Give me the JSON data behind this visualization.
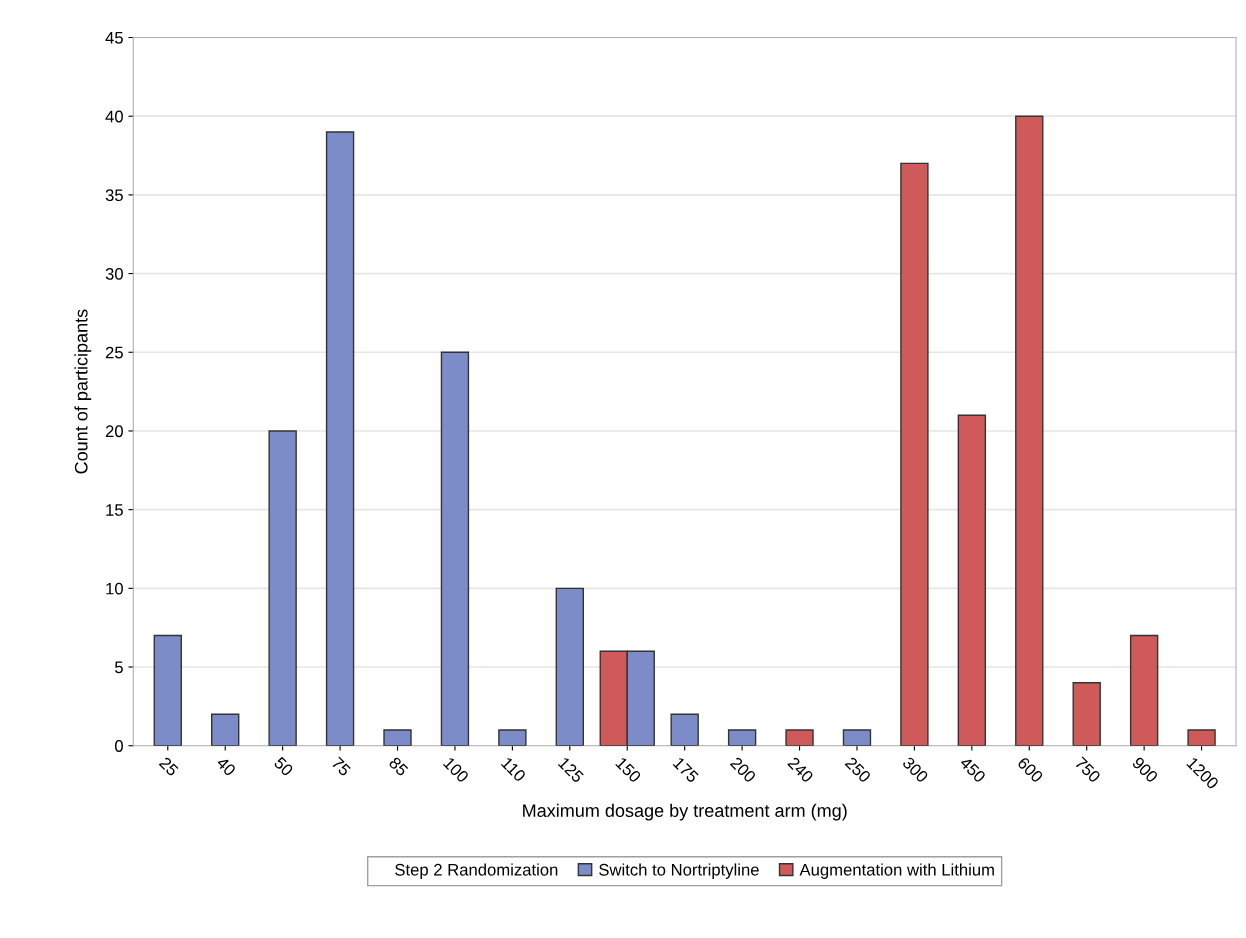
{
  "chart_data": {
    "type": "bar",
    "xlabel": "Maximum dosage by treatment arm (mg)",
    "ylabel": "Count of participants",
    "legend_title": "Step 2 Randomization",
    "categories": [
      "25",
      "40",
      "50",
      "75",
      "85",
      "100",
      "110",
      "125",
      "150",
      "175",
      "200",
      "240",
      "250",
      "300",
      "450",
      "600",
      "750",
      "900",
      "1200"
    ],
    "series": [
      {
        "name": "Switch to Nortriptyline",
        "color": "#7b8cc8",
        "values": [
          7,
          2,
          20,
          39,
          1,
          25,
          1,
          10,
          6,
          2,
          1,
          null,
          1,
          null,
          null,
          null,
          null,
          null,
          null
        ]
      },
      {
        "name": "Augmentation with Lithium",
        "color": "#d05a5a",
        "values": [
          null,
          null,
          null,
          null,
          null,
          null,
          null,
          null,
          6,
          null,
          null,
          1,
          null,
          37,
          21,
          40,
          4,
          7,
          1
        ]
      }
    ],
    "ylim": [
      0,
      45
    ],
    "yticks": [
      0,
      5,
      10,
      15,
      20,
      25,
      30,
      35,
      40,
      45
    ],
    "grid": "y",
    "legend": "bottom"
  }
}
